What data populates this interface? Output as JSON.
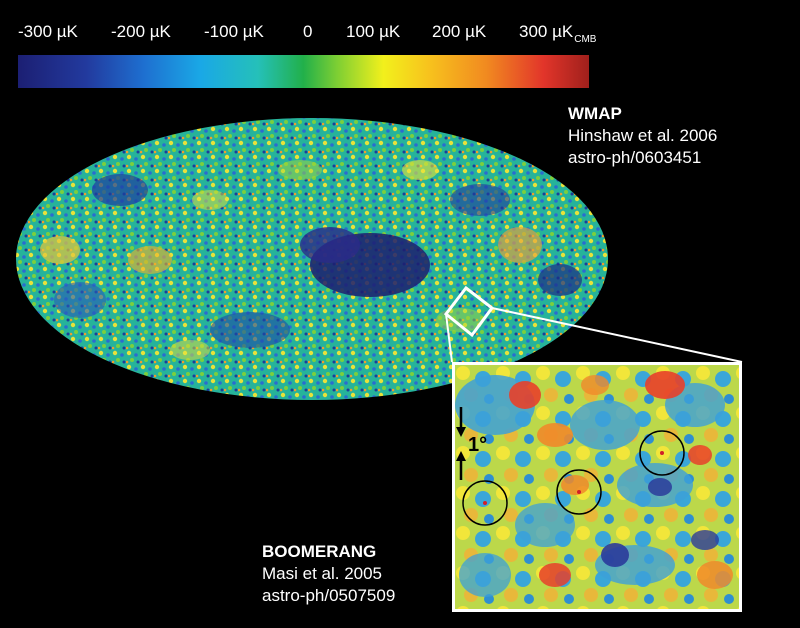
{
  "colorbar": {
    "labels": [
      "-300 µK",
      "-200 µK",
      "-100 µK",
      "0",
      "100 µK",
      "200 µK",
      "300 µK"
    ],
    "unit_subscript": "CMB",
    "gradient_colors": [
      "#1c1f73",
      "#1e6fd0",
      "#1aa8e6",
      "#22b04a",
      "#f2f01c",
      "#f18a20",
      "#a0201c"
    ]
  },
  "wmap": {
    "title": "WMAP",
    "reference": "Hinshaw et al. 2006",
    "arxiv": "astro-ph/0603451"
  },
  "boomerang": {
    "title": "BOOMERANG",
    "reference": "Masi et al. 2005",
    "arxiv": "astro-ph/0507509"
  },
  "inset": {
    "scale_label": "1°"
  }
}
